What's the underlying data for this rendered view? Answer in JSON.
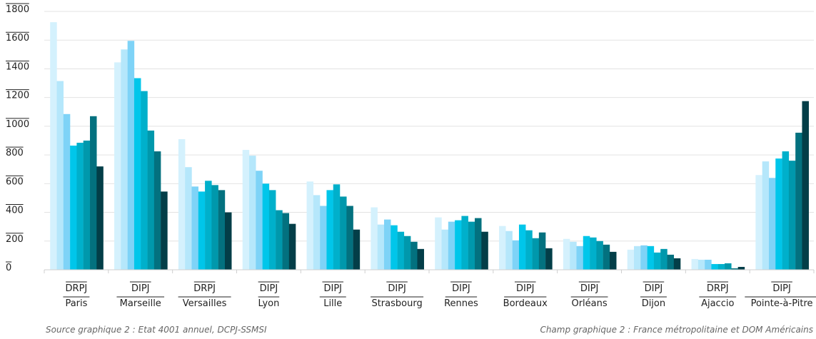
{
  "chart_data": {
    "type": "bar",
    "categories": [
      [
        "DRPJ",
        "Paris"
      ],
      [
        "DIPJ",
        "Marseille"
      ],
      [
        "DRPJ",
        "Versailles"
      ],
      [
        "DIPJ",
        "Lyon"
      ],
      [
        "DIPJ",
        "Lille"
      ],
      [
        "DIPJ",
        "Strasbourg"
      ],
      [
        "DIPJ",
        "Rennes"
      ],
      [
        "DIPJ",
        "Bordeaux"
      ],
      [
        "DIPJ",
        "Orléans"
      ],
      [
        "DIPJ",
        "Dijon"
      ],
      [
        "DRPJ",
        "Ajaccio"
      ],
      [
        "DIPJ",
        "Pointe-à-Pitre"
      ]
    ],
    "series": [
      {
        "color": "#d4f1fd",
        "values": [
          1725,
          1445,
          910,
          835,
          615,
          435,
          365,
          305,
          215,
          140,
          75,
          660
        ]
      },
      {
        "color": "#b5e7fb",
        "values": [
          1315,
          1535,
          715,
          795,
          520,
          315,
          280,
          270,
          195,
          165,
          70,
          755
        ]
      },
      {
        "color": "#7ed3f7",
        "values": [
          1085,
          1595,
          580,
          690,
          445,
          350,
          335,
          205,
          165,
          170,
          70,
          640
        ]
      },
      {
        "color": "#00c6ea",
        "values": [
          865,
          1335,
          545,
          600,
          555,
          310,
          345,
          315,
          235,
          165,
          40,
          775
        ]
      },
      {
        "color": "#00b0cb",
        "values": [
          885,
          1245,
          620,
          555,
          595,
          265,
          375,
          275,
          225,
          120,
          40,
          825
        ]
      },
      {
        "color": "#0098ac",
        "values": [
          900,
          970,
          590,
          415,
          510,
          235,
          335,
          220,
          200,
          145,
          45,
          760
        ]
      },
      {
        "color": "#03717f",
        "values": [
          1070,
          825,
          555,
          395,
          445,
          195,
          360,
          260,
          175,
          105,
          10,
          955
        ]
      },
      {
        "color": "#033e48",
        "values": [
          720,
          545,
          400,
          320,
          280,
          145,
          265,
          150,
          125,
          80,
          20,
          1175
        ]
      }
    ],
    "ylim": [
      0,
      1800
    ],
    "yticks": [
      0,
      200,
      400,
      600,
      800,
      1000,
      1200,
      1400,
      1600,
      1800
    ],
    "grid": true,
    "grid_color": "#e3e3e3",
    "source_note": "Source graphique 2 : Etat 4001 annuel, DCPJ-SSMSI",
    "scope_note": "Champ graphique 2 : France métropolitaine et DOM Américains"
  }
}
